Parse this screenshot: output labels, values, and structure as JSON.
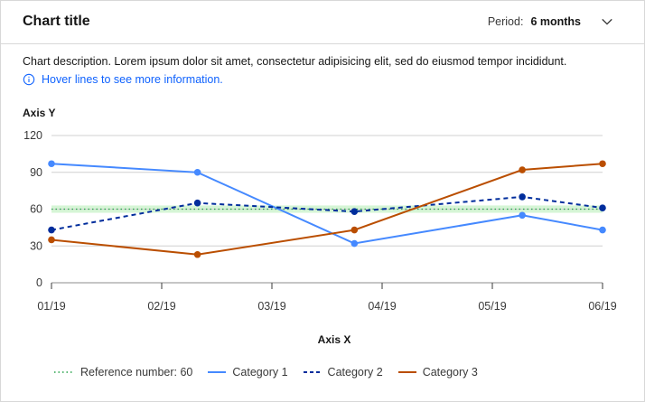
{
  "header": {
    "title": "Chart title",
    "period_label": "Period:",
    "period_value": "6 months"
  },
  "description": "Chart description. Lorem ipsum dolor sit amet, consectetur adipisicing elit, sed do eiusmod tempor incididunt.",
  "hint": "Hover lines to see more information.",
  "colors": {
    "category1": "#4589ff",
    "category2": "#002d9c",
    "category3": "#ba4e00",
    "reference_line": "#24a148",
    "reference_band": "#d6f5d6",
    "grid": "#d0d0d0",
    "link": "#0f62fe"
  },
  "chart_data": {
    "type": "line",
    "xlabel": "Axis X",
    "ylabel": "Axis Y",
    "categories": [
      "01/19",
      "02/19",
      "03/19",
      "04/19",
      "05/19",
      "06/19"
    ],
    "yticks": [
      0,
      30,
      60,
      90,
      120
    ],
    "ylim": [
      0,
      120
    ],
    "grid": true,
    "legend_position": "bottom",
    "reference": {
      "name": "Reference number: 60",
      "value": 60,
      "band": [
        57,
        63
      ]
    },
    "series": [
      {
        "name": "Category 1",
        "points": [
          [
            "2019-01-01",
            97
          ],
          [
            "2019-02-10",
            90
          ],
          [
            "2019-03-25",
            32
          ],
          [
            "2019-05-10",
            55
          ],
          [
            "2019-06-01",
            43
          ]
        ]
      },
      {
        "name": "Category 2",
        "points": [
          [
            "2019-01-01",
            43
          ],
          [
            "2019-02-10",
            65
          ],
          [
            "2019-03-25",
            58
          ],
          [
            "2019-05-10",
            70
          ],
          [
            "2019-06-01",
            61
          ]
        ]
      },
      {
        "name": "Category 3",
        "points": [
          [
            "2019-01-01",
            35
          ],
          [
            "2019-02-10",
            23
          ],
          [
            "2019-03-25",
            43
          ],
          [
            "2019-05-10",
            92
          ],
          [
            "2019-06-01",
            97
          ]
        ]
      }
    ]
  }
}
